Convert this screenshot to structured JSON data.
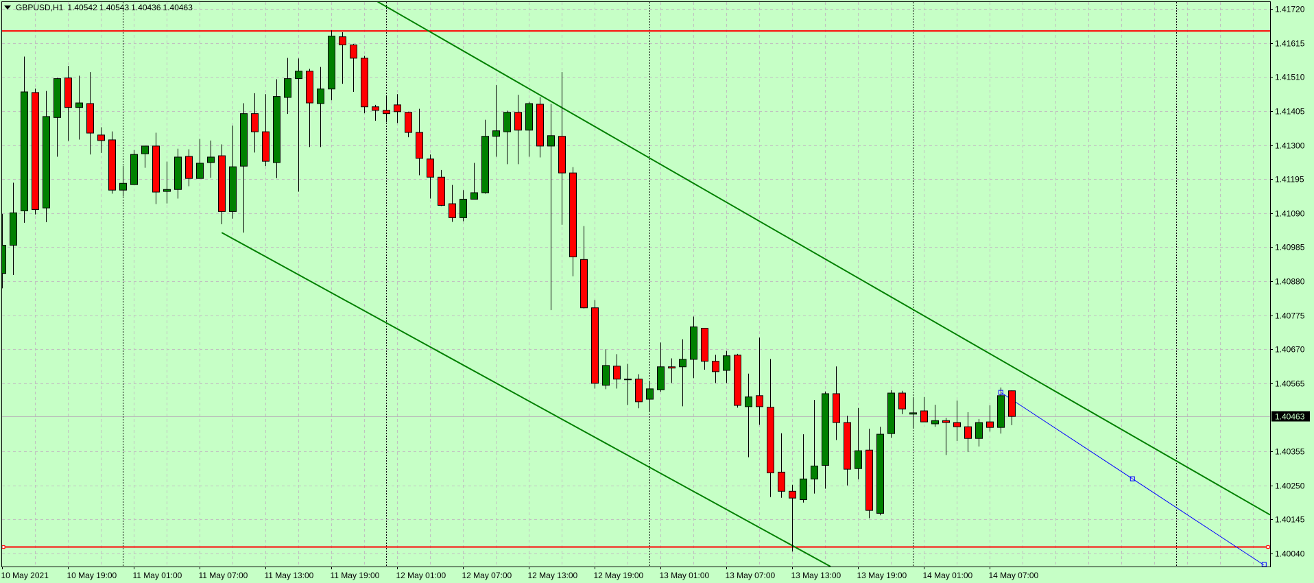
{
  "header": {
    "symbol": "GBPUSD,H1",
    "open": "1.40542",
    "high": "1.40543",
    "low": "1.40436",
    "close": "1.40463",
    "menu_icon": "triangle-down-icon"
  },
  "colors": {
    "background": "#c6ffc6",
    "grid": "#c0c0c0",
    "bull": "#008000",
    "bear": "#ff0000",
    "candle_outline": "#000000",
    "trendline": "#008000",
    "horizontal_lines": "#ff0000",
    "blue_trendline": "#0000ff",
    "price_label_bg": "#000000",
    "price_label_text": "#c6ffc6"
  },
  "chart_data": {
    "type": "candlestick",
    "title": "",
    "timeframe": "H1",
    "x_start": "2021-05-10 13:00",
    "ylim": [
      1.40005,
      1.4175
    ],
    "grid": true,
    "candles_ohlc": [
      [
        1.40904,
        1.41088,
        1.40858,
        1.40991
      ],
      [
        1.40991,
        1.41184,
        1.40899,
        1.41091
      ],
      [
        1.41097,
        1.41573,
        1.4106,
        1.41464
      ],
      [
        1.41462,
        1.41474,
        1.41086,
        1.41101
      ],
      [
        1.41106,
        1.41467,
        1.41062,
        1.41388
      ],
      [
        1.41385,
        1.41507,
        1.41264,
        1.41505
      ],
      [
        1.41507,
        1.41544,
        1.41313,
        1.41416
      ],
      [
        1.41416,
        1.41514,
        1.41317,
        1.4143
      ],
      [
        1.41428,
        1.41525,
        1.41271,
        1.41337
      ],
      [
        1.41331,
        1.41355,
        1.41276,
        1.41314
      ],
      [
        1.41316,
        1.41342,
        1.4115,
        1.41161
      ],
      [
        1.41161,
        1.41236,
        1.41141,
        1.41182
      ],
      [
        1.41178,
        1.41285,
        1.41178,
        1.41271
      ],
      [
        1.41273,
        1.41297,
        1.4123,
        1.41297
      ],
      [
        1.41297,
        1.41338,
        1.41118,
        1.41155
      ],
      [
        1.41157,
        1.41249,
        1.4112,
        1.41163
      ],
      [
        1.41163,
        1.41289,
        1.41135,
        1.41263
      ],
      [
        1.41265,
        1.41287,
        1.41173,
        1.41197
      ],
      [
        1.41197,
        1.41319,
        1.41197,
        1.41244
      ],
      [
        1.41246,
        1.41314,
        1.41199,
        1.41263
      ],
      [
        1.41267,
        1.41302,
        1.41056,
        1.41095
      ],
      [
        1.41095,
        1.4136,
        1.41073,
        1.41233
      ],
      [
        1.41235,
        1.41429,
        1.4103,
        1.41397
      ],
      [
        1.41397,
        1.4146,
        1.41277,
        1.41341
      ],
      [
        1.41341,
        1.41457,
        1.41235,
        1.4125
      ],
      [
        1.41246,
        1.41503,
        1.41198,
        1.4145
      ],
      [
        1.41447,
        1.41569,
        1.41396,
        1.41505
      ],
      [
        1.41505,
        1.41567,
        1.41156,
        1.41528
      ],
      [
        1.41528,
        1.41535,
        1.41294,
        1.4143
      ],
      [
        1.41428,
        1.41541,
        1.41294,
        1.41473
      ],
      [
        1.41473,
        1.41654,
        1.41438,
        1.41636
      ],
      [
        1.41634,
        1.41648,
        1.41489,
        1.41609
      ],
      [
        1.41609,
        1.41612,
        1.41464,
        1.41568
      ],
      [
        1.41568,
        1.41575,
        1.41398,
        1.41418
      ],
      [
        1.41418,
        1.41424,
        1.41375,
        1.41407
      ],
      [
        1.41407,
        1.41452,
        1.4137,
        1.41397
      ],
      [
        1.41424,
        1.41457,
        1.41368,
        1.41403
      ],
      [
        1.41401,
        1.41403,
        1.41324,
        1.41339
      ],
      [
        1.41339,
        1.41412,
        1.41207,
        1.41259
      ],
      [
        1.41257,
        1.41271,
        1.41135,
        1.41201
      ],
      [
        1.41201,
        1.41223,
        1.41112,
        1.41114
      ],
      [
        1.41119,
        1.41177,
        1.41063,
        1.41076
      ],
      [
        1.41076,
        1.41161,
        1.41065,
        1.41133
      ],
      [
        1.41133,
        1.41245,
        1.41133,
        1.41153
      ],
      [
        1.41153,
        1.41378,
        1.4115,
        1.41327
      ],
      [
        1.41327,
        1.41485,
        1.41264,
        1.41344
      ],
      [
        1.41341,
        1.41406,
        1.41241,
        1.41401
      ],
      [
        1.41401,
        1.41455,
        1.41241,
        1.41346
      ],
      [
        1.41346,
        1.41433,
        1.41264,
        1.41428
      ],
      [
        1.41426,
        1.41448,
        1.41262,
        1.41297
      ],
      [
        1.41297,
        1.41427,
        1.40791,
        1.41329
      ],
      [
        1.41327,
        1.41525,
        1.41054,
        1.41214
      ],
      [
        1.41214,
        1.41232,
        1.40895,
        1.40955
      ],
      [
        1.40947,
        1.4105,
        1.40796,
        1.40798
      ],
      [
        1.40798,
        1.40822,
        1.40549,
        1.40565
      ],
      [
        1.40559,
        1.4067,
        1.40547,
        1.4062
      ],
      [
        1.40618,
        1.40655,
        1.40549,
        1.40578
      ],
      [
        1.40578,
        1.40625,
        1.40498,
        1.40578
      ],
      [
        1.40578,
        1.40593,
        1.40488,
        1.40508
      ],
      [
        1.40516,
        1.40573,
        1.40479,
        1.40548
      ],
      [
        1.40545,
        1.40691,
        1.40539,
        1.40616
      ],
      [
        1.40616,
        1.40642,
        1.40566,
        1.40612
      ],
      [
        1.40616,
        1.40701,
        1.40494,
        1.40639
      ],
      [
        1.40639,
        1.40771,
        1.40581,
        1.40739
      ],
      [
        1.40735,
        1.40735,
        1.40607,
        1.40633
      ],
      [
        1.40633,
        1.40653,
        1.40566,
        1.40601
      ],
      [
        1.40605,
        1.40665,
        1.40566,
        1.4065
      ],
      [
        1.40652,
        1.40656,
        1.4049,
        1.40497
      ],
      [
        1.40493,
        1.40595,
        1.40337,
        1.40523
      ],
      [
        1.40527,
        1.40706,
        1.40437,
        1.40493
      ],
      [
        1.40491,
        1.4064,
        1.40214,
        1.40289
      ],
      [
        1.40291,
        1.40411,
        1.40212,
        1.40232
      ],
      [
        1.40232,
        1.40252,
        1.40046,
        1.40211
      ],
      [
        1.40206,
        1.40408,
        1.40197,
        1.4027
      ],
      [
        1.4027,
        1.40514,
        1.40225,
        1.4031
      ],
      [
        1.40312,
        1.4054,
        1.4024,
        1.40533
      ],
      [
        1.40533,
        1.40617,
        1.4039,
        1.40444
      ],
      [
        1.40444,
        1.40465,
        1.4025,
        1.403
      ],
      [
        1.40302,
        1.40489,
        1.40269,
        1.40357
      ],
      [
        1.40359,
        1.40425,
        1.40149,
        1.40173
      ],
      [
        1.40164,
        1.40431,
        1.40158,
        1.40408
      ],
      [
        1.4041,
        1.40544,
        1.40397,
        1.40535
      ],
      [
        1.40535,
        1.40542,
        1.4047,
        1.40486
      ],
      [
        1.4047,
        1.40523,
        1.40427,
        1.40474
      ],
      [
        1.4048,
        1.40523,
        1.40446,
        1.40446
      ],
      [
        1.4044,
        1.40499,
        1.40431,
        1.4045
      ],
      [
        1.4045,
        1.40459,
        1.40344,
        1.40444
      ],
      [
        1.40444,
        1.40512,
        1.40387,
        1.40431
      ],
      [
        1.40431,
        1.40476,
        1.40353,
        1.40395
      ],
      [
        1.40395,
        1.40455,
        1.4037,
        1.40444
      ],
      [
        1.40446,
        1.40497,
        1.40416,
        1.40429
      ],
      [
        1.40429,
        1.40552,
        1.4041,
        1.40527
      ],
      [
        1.40542,
        1.40543,
        1.40436,
        1.40463
      ]
    ],
    "price_ticks": [
      "1.41720",
      "1.41615",
      "1.41510",
      "1.41405",
      "1.41300",
      "1.41195",
      "1.41090",
      "1.40985",
      "1.40880",
      "1.40775",
      "1.40670",
      "1.40565",
      "1.40355",
      "1.40250",
      "1.40145",
      "1.40040"
    ],
    "current_price": "1.40463",
    "time_ticks": [
      {
        "time": "2021-05-10 13:00",
        "label": "10 May 2021"
      },
      {
        "time": "2021-05-10 19:00",
        "label": "10 May 19:00"
      },
      {
        "time": "2021-05-11 01:00",
        "label": "11 May 01:00"
      },
      {
        "time": "2021-05-11 07:00",
        "label": "11 May 07:00"
      },
      {
        "time": "2021-05-11 13:00",
        "label": "11 May 13:00"
      },
      {
        "time": "2021-05-11 19:00",
        "label": "11 May 19:00"
      },
      {
        "time": "2021-05-12 01:00",
        "label": "12 May 01:00"
      },
      {
        "time": "2021-05-12 07:00",
        "label": "12 May 07:00"
      },
      {
        "time": "2021-05-12 13:00",
        "label": "12 May 13:00"
      },
      {
        "time": "2021-05-12 19:00",
        "label": "12 May 19:00"
      },
      {
        "time": "2021-05-13 01:00",
        "label": "13 May 01:00"
      },
      {
        "time": "2021-05-13 07:00",
        "label": "13 May 07:00"
      },
      {
        "time": "2021-05-13 13:00",
        "label": "13 May 13:00"
      },
      {
        "time": "2021-05-13 19:00",
        "label": "13 May 19:00"
      },
      {
        "time": "2021-05-14 01:00",
        "label": "14 May 01:00"
      },
      {
        "time": "2021-05-14 07:00",
        "label": "14 May 07:00"
      }
    ],
    "horizontal_lines": [
      1.41652,
      1.4006
    ],
    "trendlines": [
      {
        "kind": "channel-upper",
        "p1": [
          "2021-05-12 02:00",
          1.41688
        ],
        "p2": [
          "2021-05-14 10:00",
          1.40598
        ],
        "ray": true
      },
      {
        "kind": "channel-lower",
        "p1": [
          "2021-05-11 09:00",
          1.4103
        ],
        "p2": [
          "2021-05-13 05:00",
          1.40213
        ],
        "ray": true
      },
      {
        "kind": "blue-selected",
        "p1": [
          "2021-05-14 08:00",
          1.40537
        ],
        "p2": [
          "2021-05-15 08:00",
          1.40004
        ],
        "ray": false
      }
    ]
  }
}
